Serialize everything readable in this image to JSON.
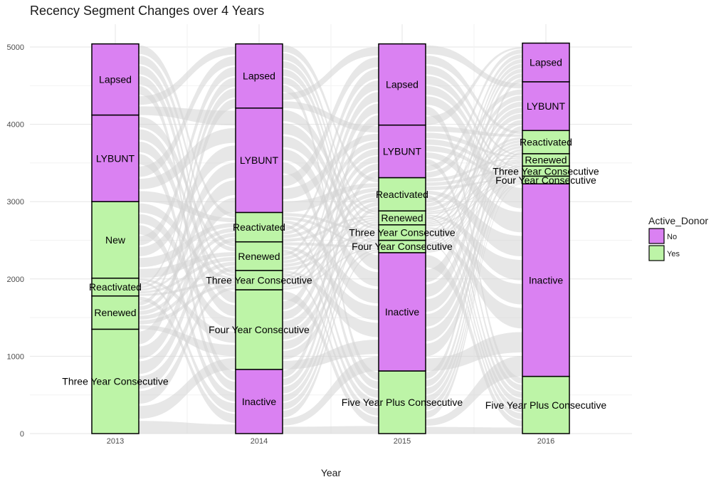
{
  "chart_data": {
    "type": "alluvial",
    "title": "Recency Segment Changes over 4 Years",
    "xlabel": "Year",
    "ylabel": "",
    "ylim": [
      0,
      5000
    ],
    "yticks": [
      "0",
      "1000",
      "2000",
      "3000",
      "4000",
      "5000"
    ],
    "grid": true,
    "legend": {
      "title": "Active_Donor",
      "placement": "right",
      "entries": [
        {
          "name": "No",
          "color": "#DA81F2"
        },
        {
          "name": "Yes",
          "color": "#BDF4A7"
        }
      ]
    },
    "colors": {
      "No": "#DA81F2",
      "Yes": "#BDF4A7",
      "flow": "#D3D3D3"
    },
    "stacks": [
      {
        "x": "2013",
        "segments": [
          {
            "label": "Three Year Consecutive",
            "active": "Yes",
            "value": 1350
          },
          {
            "label": "Renewed",
            "active": "Yes",
            "value": 430
          },
          {
            "label": "Reactivated",
            "active": "Yes",
            "value": 230
          },
          {
            "label": "New",
            "active": "Yes",
            "value": 990
          },
          {
            "label": "LYBUNT",
            "active": "No",
            "value": 1120
          },
          {
            "label": "Lapsed",
            "active": "No",
            "value": 920
          }
        ]
      },
      {
        "x": "2014",
        "segments": [
          {
            "label": "Inactive",
            "active": "No",
            "value": 830
          },
          {
            "label": "Four Year Consecutive",
            "active": "Yes",
            "value": 1030
          },
          {
            "label": "Three Year Consecutive",
            "active": "Yes",
            "value": 250
          },
          {
            "label": "Renewed",
            "active": "Yes",
            "value": 370
          },
          {
            "label": "Reactivated",
            "active": "Yes",
            "value": 380
          },
          {
            "label": "LYBUNT",
            "active": "No",
            "value": 1350
          },
          {
            "label": "Lapsed",
            "active": "No",
            "value": 830
          }
        ]
      },
      {
        "x": "2015",
        "segments": [
          {
            "label": "Five Year Plus Consecutive",
            "active": "Yes",
            "value": 810
          },
          {
            "label": "Inactive",
            "active": "No",
            "value": 1530
          },
          {
            "label": "Four Year Consecutive",
            "active": "Yes",
            "value": 160
          },
          {
            "label": "Three Year Consecutive",
            "active": "Yes",
            "value": 200
          },
          {
            "label": "Renewed",
            "active": "Yes",
            "value": 180
          },
          {
            "label": "Reactivated",
            "active": "Yes",
            "value": 430
          },
          {
            "label": "LYBUNT",
            "active": "No",
            "value": 680
          },
          {
            "label": "Lapsed",
            "active": "No",
            "value": 1050
          }
        ]
      },
      {
        "x": "2016",
        "segments": [
          {
            "label": "Five Year Plus Consecutive",
            "active": "Yes",
            "value": 740
          },
          {
            "label": "Inactive",
            "active": "No",
            "value": 2490
          },
          {
            "label": "Four Year Consecutive",
            "active": "Yes",
            "value": 100
          },
          {
            "label": "Three Year Consecutive",
            "active": "Yes",
            "value": 130
          },
          {
            "label": "Renewed",
            "active": "Yes",
            "value": 160
          },
          {
            "label": "Reactivated",
            "active": "Yes",
            "value": 300
          },
          {
            "label": "LYBUNT",
            "active": "No",
            "value": 630
          },
          {
            "label": "Lapsed",
            "active": "No",
            "value": 500
          }
        ]
      }
    ]
  }
}
